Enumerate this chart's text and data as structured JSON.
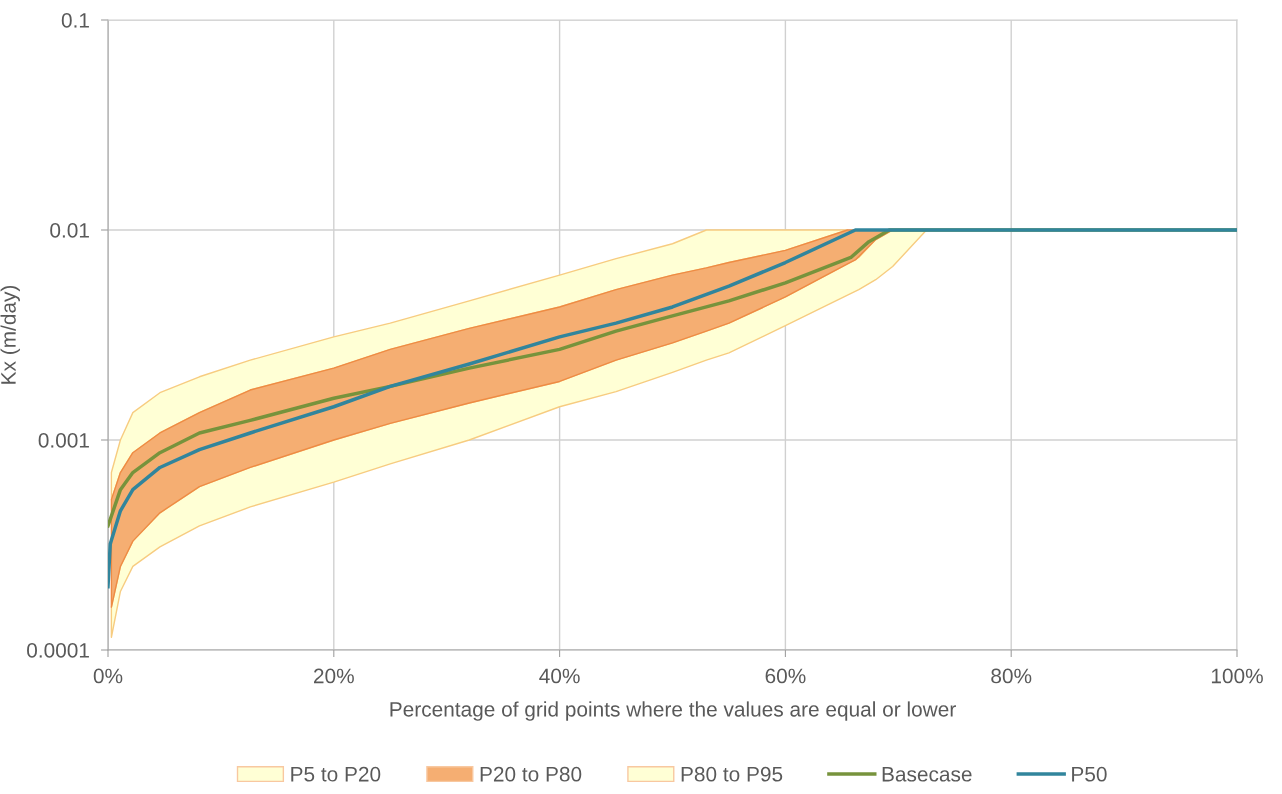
{
  "chart_data": {
    "type": "line",
    "xlabel": "Percentage of grid points where the values are equal or lower",
    "ylabel": "Kx (m/day)",
    "log": "y",
    "grid": true,
    "legend": "bottom",
    "xlim": [
      0,
      100
    ],
    "xticks": [
      {
        "value": 0,
        "label": "0%"
      },
      {
        "value": 20,
        "label": "20%"
      },
      {
        "value": 40,
        "label": "40%"
      },
      {
        "value": 60,
        "label": "60%"
      },
      {
        "value": 80,
        "label": "80%"
      },
      {
        "value": 100,
        "label": "100%"
      }
    ],
    "ylim": [
      0.0001,
      0.1
    ],
    "yticks": [
      0.0001,
      0.001,
      0.01,
      0.1
    ],
    "series": [
      {
        "name": "P5 to P20",
        "color": "#ffffd5",
        "x": [
          0.3,
          1.1,
          2.2,
          4.6,
          8.1,
          12.6,
          20,
          25,
          32,
          40,
          45,
          50,
          53,
          55,
          60,
          65.5,
          66.5,
          68,
          69.5,
          72.5
        ],
        "values": [
          null,
          null,
          null,
          null,
          null,
          null,
          null,
          null,
          null,
          null,
          null,
          null,
          null,
          null,
          null,
          null,
          null,
          null,
          null,
          null
        ],
        "lower": [
          0.000115,
          0.00019,
          0.00025,
          0.00031,
          0.00039,
          0.00048,
          0.00063,
          0.00077,
          0.001,
          0.00144,
          0.0017,
          0.0021,
          0.0024,
          0.0026,
          0.0035,
          0.0049,
          0.0052,
          0.0058,
          0.0067,
          0.01
        ],
        "upper": [
          0.00016,
          0.00025,
          0.00033,
          0.00045,
          0.0006,
          0.00074,
          0.001,
          0.0012,
          0.0015,
          0.0019,
          0.0024,
          0.0029,
          0.0033,
          0.0036,
          0.0048,
          0.0069,
          0.0074,
          0.009,
          0.01,
          0.01
        ]
      },
      {
        "name": "P20 to P80",
        "color": "#f5ae72",
        "x": [
          0.3,
          1.1,
          2.2,
          4.6,
          8.1,
          12.6,
          20,
          25,
          32,
          40,
          45,
          50,
          53,
          55,
          60,
          65.5,
          66.2,
          68,
          69.5
        ],
        "values": [
          null,
          null,
          null,
          null,
          null,
          null,
          null,
          null,
          null,
          null,
          null,
          null,
          null,
          null,
          null,
          null,
          null,
          null,
          null
        ],
        "lower": [
          0.00016,
          0.00025,
          0.00033,
          0.00045,
          0.0006,
          0.00074,
          0.001,
          0.0012,
          0.0015,
          0.0019,
          0.0024,
          0.0029,
          0.0033,
          0.0036,
          0.0048,
          0.0069,
          0.0072,
          0.009,
          0.01
        ],
        "upper": [
          0.00052,
          0.0007,
          0.00087,
          0.00108,
          0.00135,
          0.00173,
          0.0022,
          0.0027,
          0.0034,
          0.0043,
          0.0052,
          0.0061,
          0.0066,
          0.007,
          0.008,
          0.01,
          0.01,
          0.01,
          0.01
        ]
      },
      {
        "name": "P80 to P95",
        "color": "#ffffd5",
        "x": [
          0.3,
          1.1,
          2.2,
          4.6,
          8.1,
          12.6,
          20,
          25,
          32,
          40,
          45,
          50,
          53,
          55,
          60,
          65.5
        ],
        "values": [
          null,
          null,
          null,
          null,
          null,
          null,
          null,
          null,
          null,
          null,
          null,
          null,
          null,
          null,
          null,
          null
        ],
        "lower": [
          0.00052,
          0.0007,
          0.00087,
          0.00108,
          0.00135,
          0.00173,
          0.0022,
          0.0027,
          0.0034,
          0.0043,
          0.0052,
          0.0061,
          0.0066,
          0.007,
          0.008,
          0.01
        ],
        "upper": [
          0.0007,
          0.001,
          0.00135,
          0.00168,
          0.002,
          0.0024,
          0.0031,
          0.0036,
          0.0046,
          0.0061,
          0.0073,
          0.0086,
          0.01,
          0.01,
          0.01,
          0.01
        ]
      },
      {
        "name": "Basecase",
        "color": "#77933c",
        "x": [
          0,
          1.1,
          2.2,
          4.6,
          8.1,
          12.6,
          20,
          25,
          32,
          40,
          45,
          50,
          55,
          60,
          65.8,
          67.4,
          69.2,
          100
        ],
        "values": [
          0.00039,
          0.00058,
          0.0007,
          0.00087,
          0.00108,
          0.00124,
          0.00158,
          0.0018,
          0.0022,
          0.0027,
          0.0033,
          0.0039,
          0.0046,
          0.0056,
          0.0074,
          0.0088,
          0.01,
          0.01
        ]
      },
      {
        "name": "P50",
        "color": "#31859c",
        "x": [
          0,
          0.2,
          1.1,
          2.2,
          4.6,
          8.1,
          12.6,
          20,
          25,
          32,
          40,
          45,
          50,
          55,
          60,
          66.2,
          100
        ],
        "values": [
          0.0002,
          0.00032,
          0.00046,
          0.00058,
          0.00074,
          0.0009,
          0.00108,
          0.00144,
          0.0018,
          0.0023,
          0.0031,
          0.0036,
          0.0043,
          0.0054,
          0.007,
          0.01,
          0.01
        ]
      }
    ]
  }
}
